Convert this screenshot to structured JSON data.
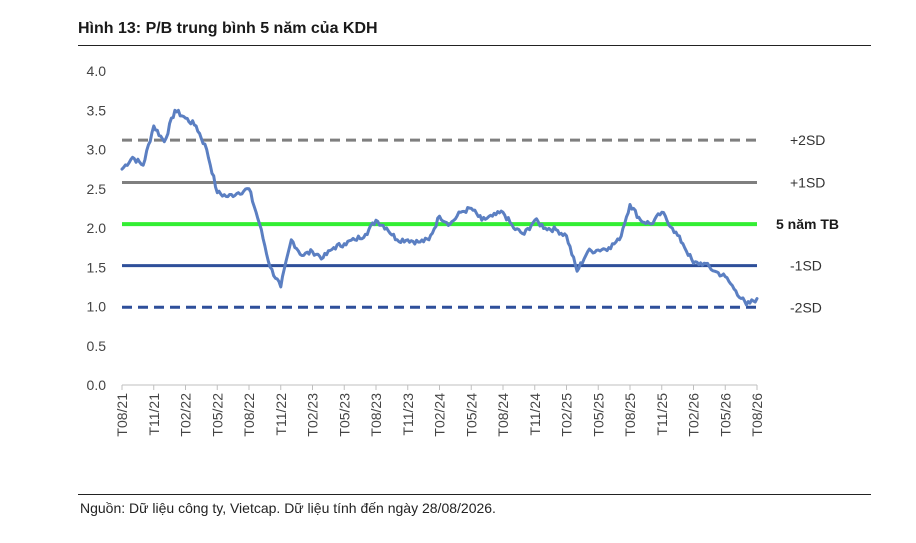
{
  "title": "Hình 13: P/B trung bình 5 năm của KDH",
  "source": "Nguồn: Dữ liệu công ty, Vietcap. Dữ liệu tính đến ngày 28/08/2026.",
  "colors": {
    "series": "#5b7fc2",
    "plus_2sd": "#7f7f7f",
    "plus_1sd": "#7f7f7f",
    "mean": "#33ee33",
    "minus_1sd": "#2e4f9a",
    "minus_2sd": "#2e4f9a",
    "axis": "#bfbfbf"
  },
  "chart_data": {
    "type": "line",
    "title": "Hình 13: P/B trung bình 5 năm của KDH",
    "xlabel": "",
    "ylabel": "",
    "ylim": [
      0,
      4
    ],
    "yticks": [
      "0.0",
      "0.5",
      "1.0",
      "1.5",
      "2.0",
      "2.5",
      "3.0",
      "3.5",
      "4.0"
    ],
    "grid": false,
    "legend": "none",
    "x_tick_labels": [
      "T08/21",
      "T11/21",
      "T02/22",
      "T05/22",
      "T08/22",
      "T11/22",
      "T02/23",
      "T05/23",
      "T08/23",
      "T11/23",
      "T02/24",
      "T05/24",
      "T08/24",
      "T11/24",
      "T02/25",
      "T05/25",
      "T08/25",
      "T11/25",
      "T02/26",
      "T05/26",
      "T08/26"
    ],
    "reference_lines": [
      {
        "label": "+2SD",
        "value": 3.12,
        "style": "dashed"
      },
      {
        "label": "+1SD",
        "value": 2.58,
        "style": "solid"
      },
      {
        "label": "5 năm TB",
        "value": 2.05,
        "style": "solid"
      },
      {
        "label": "-1SD",
        "value": 1.52,
        "style": "solid"
      },
      {
        "label": "-2SD",
        "value": 0.99,
        "style": "dashed"
      }
    ],
    "series": [
      {
        "x": [
          "T08/21",
          "T09/21",
          "T10/21",
          "T11/21",
          "T12/21",
          "T01/22",
          "T02/22",
          "T03/22",
          "T04/22",
          "T05/22",
          "T06/22",
          "T07/22",
          "T08/22",
          "T09/22",
          "T10/22",
          "T11/22",
          "T12/22",
          "T01/23",
          "T02/23",
          "T03/23",
          "T04/23",
          "T05/23",
          "T06/23",
          "T07/23",
          "T08/23",
          "T09/23",
          "T10/23",
          "T11/23",
          "T12/23",
          "T01/24",
          "T02/24",
          "T03/24",
          "T04/24",
          "T05/24",
          "T06/24",
          "T07/24",
          "T08/24",
          "T09/24",
          "T10/24",
          "T11/24",
          "T12/24",
          "T01/25",
          "T02/25",
          "T03/25",
          "T04/25",
          "T05/25",
          "T06/25",
          "T07/25",
          "T08/25",
          "T09/25",
          "T10/25",
          "T11/25",
          "T12/25",
          "T01/26",
          "T02/26",
          "T03/26",
          "T04/26",
          "T05/26",
          "T06/26",
          "T07/26",
          "T08/26"
        ],
        "values": [
          2.75,
          2.9,
          2.8,
          3.3,
          3.1,
          3.5,
          3.4,
          3.3,
          3.0,
          2.45,
          2.4,
          2.45,
          2.5,
          2.05,
          1.5,
          1.25,
          1.85,
          1.65,
          1.7,
          1.62,
          1.75,
          1.8,
          1.85,
          1.92,
          2.1,
          2.0,
          1.85,
          1.85,
          1.82,
          1.85,
          2.15,
          2.05,
          2.2,
          2.25,
          2.1,
          2.15,
          2.2,
          2.0,
          1.92,
          2.1,
          2.0,
          1.98,
          1.9,
          1.45,
          1.7,
          1.72,
          1.75,
          1.85,
          2.3,
          2.1,
          2.05,
          2.2,
          2.0,
          1.8,
          1.55,
          1.55,
          1.45,
          1.38,
          1.2,
          1.02,
          1.1
        ]
      }
    ]
  }
}
